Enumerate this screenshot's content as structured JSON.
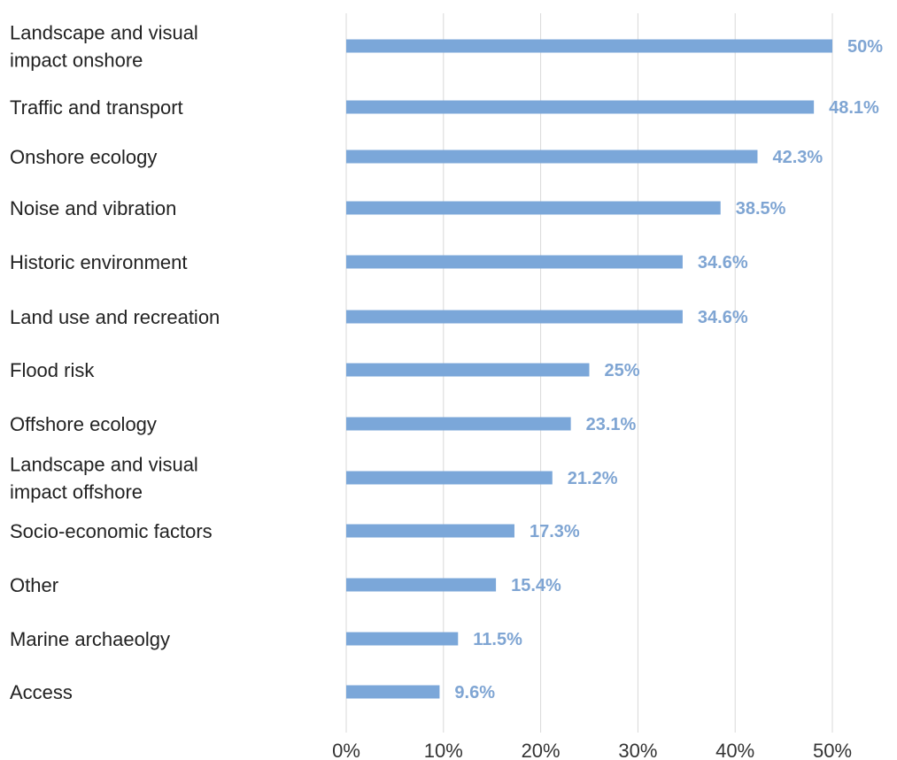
{
  "chart_data": {
    "type": "bar",
    "orientation": "horizontal",
    "title": "",
    "xlabel": "",
    "ylabel": "",
    "categories": [
      [
        "Landscape and visual",
        "impact onshore"
      ],
      [
        "Traffic and transport"
      ],
      [
        "Onshore ecology"
      ],
      [
        "Noise and vibration"
      ],
      [
        "Historic environment"
      ],
      [
        "Land use and recreation"
      ],
      [
        "Flood risk"
      ],
      [
        "Offshore ecology"
      ],
      [
        "Landscape and visual",
        "impact offshore"
      ],
      [
        "Socio-economic factors"
      ],
      [
        "Other"
      ],
      [
        "Marine archaeolgy"
      ],
      [
        "Access"
      ]
    ],
    "values": [
      50,
      48.1,
      42.3,
      38.5,
      34.6,
      34.6,
      25,
      23.1,
      21.2,
      17.3,
      15.4,
      11.5,
      9.6
    ],
    "value_labels": [
      "50%",
      "48.1%",
      "42.3%",
      "38.5%",
      "34.6%",
      "34.6%",
      "25%",
      "23.1%",
      "21.2%",
      "17.3%",
      "15.4%",
      "11.5%",
      "9.6%"
    ],
    "xlim": [
      0,
      50
    ],
    "x_ticks": [
      0,
      10,
      20,
      30,
      40,
      50
    ],
    "x_tick_labels": [
      "0%",
      "10%",
      "20%",
      "30%",
      "40%",
      "50%"
    ],
    "grid": "vertical",
    "legend": "none",
    "bar_color": "#7ba7d9",
    "value_label_color": "#7fa5d3"
  }
}
